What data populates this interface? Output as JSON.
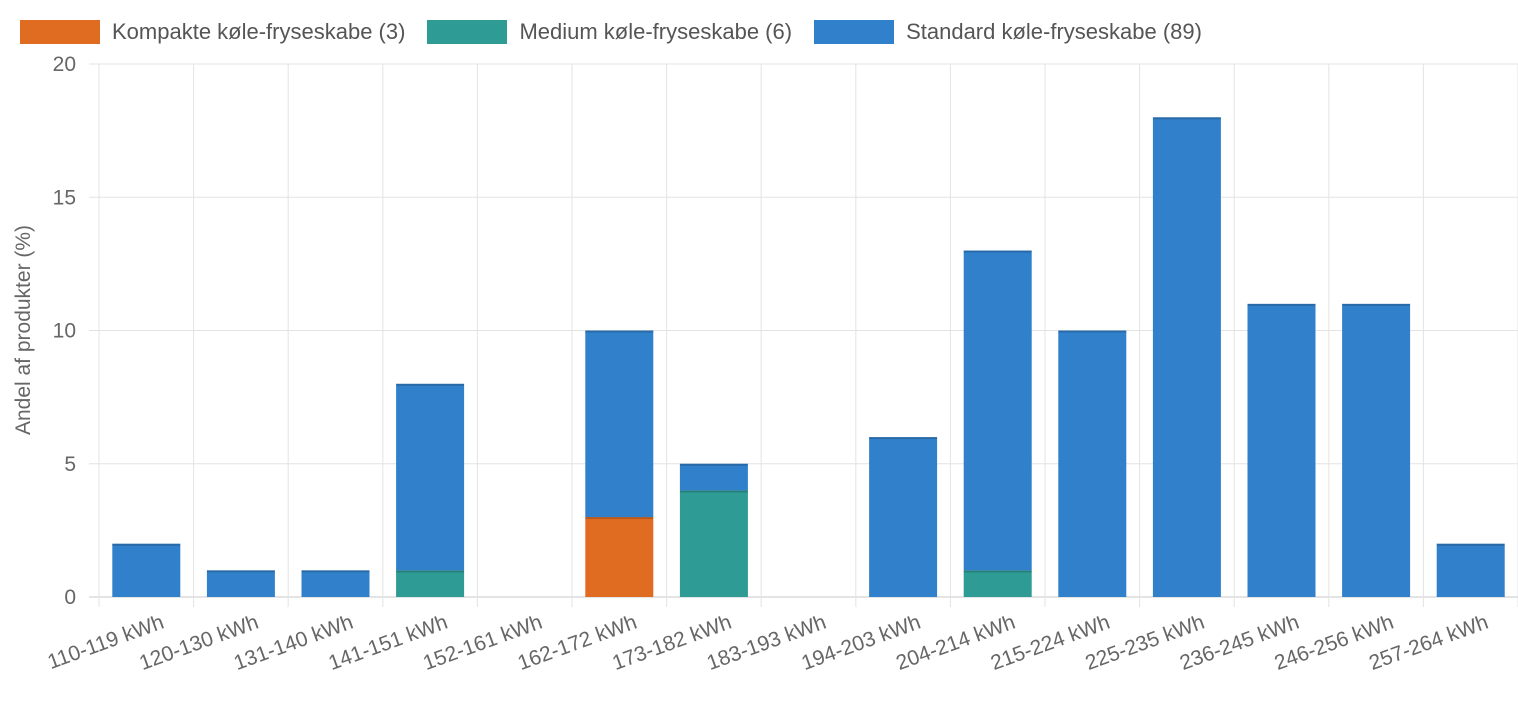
{
  "chart_data": {
    "type": "bar",
    "stacked": true,
    "title": "",
    "xlabel": "",
    "ylabel": "Andel af produkter (%)",
    "ylim": [
      0,
      20
    ],
    "yticks": [
      0,
      5,
      10,
      15,
      20
    ],
    "grid": true,
    "legend_position": "top-left",
    "categories": [
      "110-119 kWh",
      "120-130 kWh",
      "131-140 kWh",
      "141-151 kWh",
      "152-161 kWh",
      "162-172 kWh",
      "173-182 kWh",
      "183-193 kWh",
      "194-203 kWh",
      "204-214 kWh",
      "215-224 kWh",
      "225-235 kWh",
      "236-245 kWh",
      "246-256 kWh",
      "257-264 kWh"
    ],
    "series": [
      {
        "name": "Kompakte køle-fryseskabe (3)",
        "color": "#e06c22",
        "values": [
          0,
          0,
          0,
          0,
          0,
          3,
          0,
          0,
          0,
          0,
          0,
          0,
          0,
          0,
          0
        ]
      },
      {
        "name": "Medium køle-fryseskabe (6)",
        "color": "#2e9b94",
        "values": [
          0,
          0,
          0,
          1,
          0,
          0,
          4,
          0,
          0,
          1,
          0,
          0,
          0,
          0,
          0
        ]
      },
      {
        "name": "Standard køle-fryseskabe (89)",
        "color": "#3180cc",
        "values": [
          2,
          1,
          1,
          7,
          0,
          7,
          1,
          0,
          6,
          12,
          10,
          18,
          11,
          11,
          2
        ]
      }
    ]
  }
}
